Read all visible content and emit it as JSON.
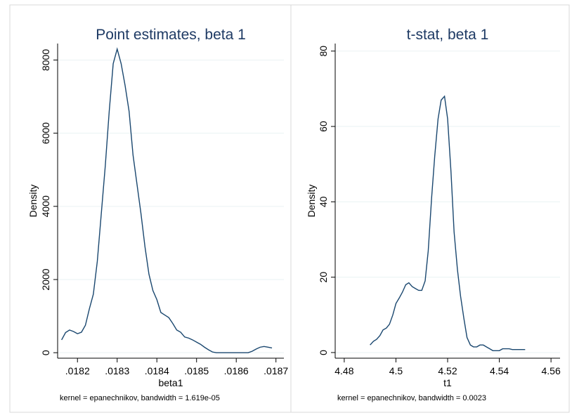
{
  "colors": {
    "line": "#1a476f",
    "title": "#1e3a64",
    "grid": "#eaf2f3",
    "axis": "#000000",
    "panel_border": "#d9d9d9"
  },
  "chart_data": [
    {
      "type": "line",
      "title": "Point estimates, beta 1",
      "xlabel": "beta1",
      "ylabel": "Density",
      "note": "kernel = epanechnikov, bandwidth =  1.619e-05",
      "xlim": [
        0.01815,
        0.01872
      ],
      "ylim": [
        -150,
        8450
      ],
      "xticks": [
        0.0182,
        0.0183,
        0.0184,
        0.0185,
        0.0186,
        0.0187
      ],
      "xtick_labels": [
        ".0182",
        ".0183",
        ".0184",
        ".0185",
        ".0186",
        ".0187"
      ],
      "yticks": [
        0,
        2000,
        4000,
        6000,
        8000
      ],
      "ytick_labels": [
        "0",
        "2000",
        "4000",
        "6000",
        "8000"
      ],
      "grid": true,
      "series": [
        {
          "x": [
            0.01816,
            0.01817,
            0.01818,
            0.01819,
            0.0182,
            0.01821,
            0.01822,
            0.01823,
            0.01824,
            0.01825,
            0.01826,
            0.01827,
            0.01828,
            0.01829,
            0.0183,
            0.01831,
            0.01832,
            0.01833,
            0.01834,
            0.01835,
            0.01836,
            0.01837,
            0.01838,
            0.01839,
            0.0184,
            0.01841,
            0.01842,
            0.01843,
            0.01844,
            0.01845,
            0.01846,
            0.01847,
            0.01848,
            0.01849,
            0.0185,
            0.01851,
            0.01852,
            0.01853,
            0.01854,
            0.01855,
            0.01856,
            0.01857,
            0.01858,
            0.01859,
            0.0186,
            0.01861,
            0.01862,
            0.01863,
            0.01864,
            0.01865,
            0.01866,
            0.01867,
            0.01868,
            0.01869
          ],
          "y": [
            350,
            550,
            620,
            580,
            520,
            560,
            750,
            1200,
            1600,
            2500,
            3800,
            5100,
            6600,
            7900,
            8300,
            7900,
            7300,
            6600,
            5400,
            4600,
            3800,
            2900,
            2150,
            1700,
            1450,
            1100,
            1030,
            960,
            800,
            620,
            560,
            430,
            400,
            350,
            290,
            230,
            150,
            80,
            20,
            0,
            0,
            0,
            0,
            0,
            0,
            0,
            0,
            0,
            40,
            100,
            150,
            170,
            150,
            130
          ]
        }
      ]
    },
    {
      "type": "line",
      "title": "t-stat, beta 1",
      "xlabel": "t1",
      "ylabel": "Density",
      "note": "kernel = epanechnikov, bandwidth = 0.0023",
      "xlim": [
        4.4765,
        4.5635
      ],
      "ylim": [
        -1.5,
        82
      ],
      "xticks": [
        4.48,
        4.5,
        4.52,
        4.54,
        4.56
      ],
      "xtick_labels": [
        "4.48",
        "4.5",
        "4.52",
        "4.54",
        "4.56"
      ],
      "yticks": [
        0,
        20,
        40,
        60,
        80
      ],
      "ytick_labels": [
        "0",
        "20",
        "40",
        "60",
        "80"
      ],
      "grid": true,
      "series": [
        {
          "x": [
            4.49,
            4.4913,
            4.4925,
            4.4938,
            4.495,
            4.4963,
            4.4975,
            4.4988,
            4.5,
            4.5013,
            4.5025,
            4.5038,
            4.505,
            4.5063,
            4.5075,
            4.5088,
            4.51,
            4.5113,
            4.5125,
            4.5138,
            4.515,
            4.5163,
            4.5175,
            4.5188,
            4.52,
            4.5213,
            4.5225,
            4.5238,
            4.525,
            4.5263,
            4.5275,
            4.5288,
            4.53,
            4.5313,
            4.5325,
            4.5338,
            4.535,
            4.5363,
            4.5375,
            4.5388,
            4.54,
            4.5413,
            4.5425,
            4.5438,
            4.545,
            4.5463,
            4.5475,
            4.5488,
            4.55
          ],
          "y": [
            2,
            3,
            3.5,
            4.5,
            6,
            6.5,
            7.5,
            10,
            13,
            14.5,
            16,
            18,
            18.5,
            17.5,
            17,
            16.5,
            16.5,
            19,
            27,
            41,
            52,
            62,
            67,
            68,
            62,
            48,
            32,
            22,
            15,
            9,
            4,
            2,
            1.5,
            1.5,
            2,
            2,
            1.5,
            1,
            0.5,
            0.5,
            0.5,
            1,
            1,
            1,
            0.8,
            0.8,
            0.8,
            0.8,
            0.8
          ]
        }
      ]
    }
  ]
}
